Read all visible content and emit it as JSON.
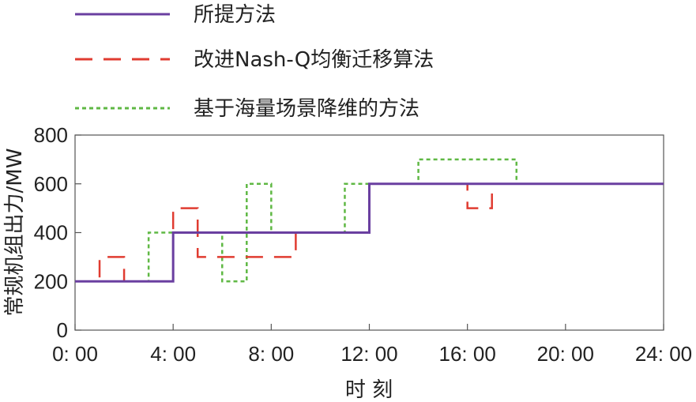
{
  "chart_data": {
    "type": "line",
    "step": true,
    "xlabel": "时 刻",
    "ylabel": "常规机组出力/MW",
    "xlim": [
      0,
      24
    ],
    "ylim": [
      0,
      800
    ],
    "x_ticks": [
      0,
      4,
      8,
      12,
      16,
      20,
      24
    ],
    "x_tick_labels": [
      "0: 00",
      "4: 00",
      "8: 00",
      "12: 00",
      "16: 00",
      "20: 00",
      "24: 00"
    ],
    "y_ticks": [
      0,
      200,
      400,
      600,
      800
    ],
    "y_tick_labels": [
      "0",
      "200",
      "400",
      "600",
      "800"
    ],
    "grid": false,
    "legend_position": "top-left, outside plot area",
    "series": [
      {
        "name": "所提方法",
        "color": "#6a3fa0",
        "style": "solid",
        "steps": [
          [
            0,
            200
          ],
          [
            4,
            400
          ],
          [
            12,
            600
          ],
          [
            24,
            600
          ]
        ]
      },
      {
        "name": "改进Nash-Q均衡迁移算法",
        "color": "#e03c31",
        "style": "dashed",
        "steps": [
          [
            0,
            200
          ],
          [
            1,
            300
          ],
          [
            2,
            200
          ],
          [
            4,
            500
          ],
          [
            5,
            300
          ],
          [
            9,
            400
          ],
          [
            12,
            600
          ],
          [
            16,
            500
          ],
          [
            17,
            600
          ],
          [
            24,
            600
          ]
        ]
      },
      {
        "name": "基于海量场景降维的方法",
        "color": "#5fb844",
        "style": "dotted",
        "steps": [
          [
            0,
            200
          ],
          [
            3,
            400
          ],
          [
            4,
            400
          ],
          [
            6,
            200
          ],
          [
            7,
            600
          ],
          [
            8,
            400
          ],
          [
            11,
            600
          ],
          [
            12,
            600
          ],
          [
            14,
            700
          ],
          [
            18,
            600
          ],
          [
            24,
            600
          ]
        ]
      }
    ]
  }
}
